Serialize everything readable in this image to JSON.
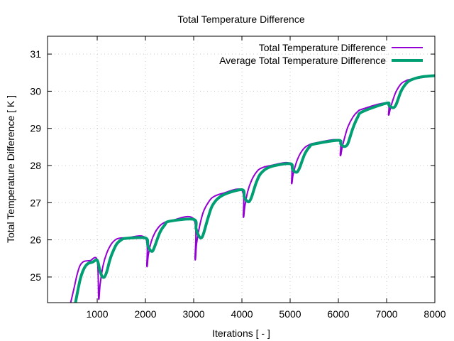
{
  "chart_data": {
    "type": "line",
    "title": "Total Temperature Difference",
    "xlabel": "Iterations [ - ]",
    "ylabel": "Total Temperature Difference [ K ]",
    "xlim": [
      -30,
      8000
    ],
    "ylim": [
      24.31,
      31.48
    ],
    "xticks": [
      1000,
      2000,
      3000,
      4000,
      5000,
      6000,
      7000,
      8000
    ],
    "xtick_labels": [
      "1000",
      "2000",
      "3000",
      "4000",
      "5000",
      "6000",
      "7000",
      "8000"
    ],
    "yticks": [
      25,
      26,
      27,
      28,
      29,
      30,
      31
    ],
    "ytick_labels": [
      "25",
      "26",
      "27",
      "28",
      "29",
      "30",
      "31"
    ],
    "grid": true,
    "legend_position": "top-right",
    "series": [
      {
        "name": "Total Temperature Difference",
        "color": "#9400d3",
        "x": [
          450,
          520,
          580,
          640,
          700,
          760,
          850,
          1000,
          1030,
          1060,
          1120,
          1200,
          1300,
          1400,
          1500,
          1600,
          2000,
          2030,
          2060,
          2120,
          2200,
          2300,
          2400,
          2500,
          3000,
          3030,
          3060,
          3120,
          3200,
          3300,
          3400,
          3600,
          4000,
          4030,
          4060,
          4120,
          4200,
          4300,
          4400,
          4600,
          5000,
          5030,
          5060,
          5120,
          5200,
          5300,
          5400,
          5500,
          6000,
          6040,
          6080,
          6140,
          6200,
          6300,
          6400,
          6500,
          7000,
          7040,
          7080,
          7140,
          7200,
          7300,
          7400,
          7500,
          8000
        ],
        "y": [
          24.31,
          24.7,
          25.05,
          25.3,
          25.4,
          25.43,
          25.44,
          25.45,
          24.42,
          24.8,
          25.3,
          25.65,
          25.9,
          26.02,
          26.05,
          26.05,
          26.05,
          25.29,
          25.6,
          25.95,
          26.2,
          26.38,
          26.47,
          26.5,
          26.56,
          25.48,
          25.9,
          26.35,
          26.75,
          27.0,
          27.15,
          27.25,
          27.33,
          26.62,
          26.9,
          27.3,
          27.6,
          27.82,
          27.93,
          28.0,
          28.05,
          27.52,
          27.75,
          28.05,
          28.3,
          28.48,
          28.56,
          28.6,
          28.68,
          28.27,
          28.5,
          28.8,
          29.05,
          29.3,
          29.45,
          29.52,
          29.68,
          29.36,
          29.55,
          29.8,
          30.0,
          30.2,
          30.28,
          30.32,
          30.42
        ]
      },
      {
        "name": "Average Total Temperature Difference",
        "color": "#009e73",
        "x": [
          550,
          600,
          650,
          700,
          760,
          820,
          900,
          1000,
          1050,
          1100,
          1150,
          1200,
          1250,
          1300,
          1400,
          1500,
          1600,
          2000,
          2050,
          2100,
          2150,
          2200,
          2300,
          2400,
          2500,
          3000,
          3050,
          3100,
          3150,
          3200,
          3300,
          3400,
          3600,
          4000,
          4050,
          4100,
          4150,
          4200,
          4300,
          4400,
          4600,
          5000,
          5050,
          5100,
          5150,
          5200,
          5300,
          5400,
          5500,
          6000,
          6050,
          6100,
          6150,
          6200,
          6300,
          6400,
          6500,
          7000,
          7050,
          7100,
          7150,
          7200,
          7300,
          7400,
          7500,
          7700,
          8000
        ],
        "y": [
          24.31,
          24.65,
          24.95,
          25.15,
          25.3,
          25.37,
          25.4,
          25.45,
          25.2,
          25.02,
          25.0,
          25.15,
          25.4,
          25.6,
          25.88,
          26.0,
          26.04,
          26.05,
          25.85,
          25.72,
          25.7,
          25.85,
          26.2,
          26.4,
          26.5,
          26.55,
          26.3,
          26.12,
          26.05,
          26.15,
          26.6,
          26.95,
          27.2,
          27.35,
          27.15,
          27.05,
          27.03,
          27.15,
          27.55,
          27.8,
          27.97,
          28.05,
          27.9,
          27.83,
          27.83,
          27.95,
          28.3,
          28.5,
          28.58,
          28.68,
          28.58,
          28.52,
          28.52,
          28.6,
          29.0,
          29.3,
          29.45,
          29.68,
          29.62,
          29.57,
          29.56,
          29.65,
          30.0,
          30.2,
          30.3,
          30.38,
          30.42
        ]
      }
    ]
  }
}
